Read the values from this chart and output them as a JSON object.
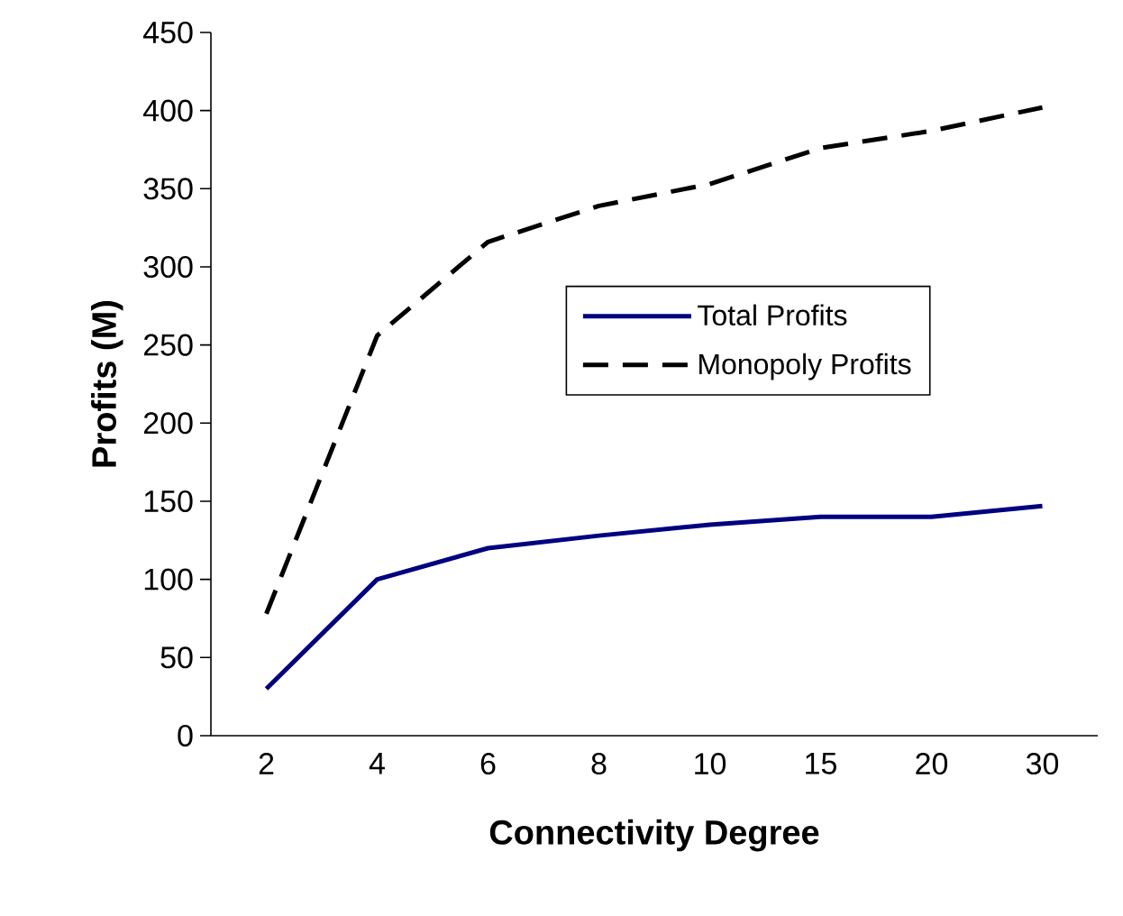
{
  "chart_data": {
    "type": "line",
    "xlabel": "Connectivity Degree",
    "ylabel": "Profits (M)",
    "categories": [
      "2",
      "4",
      "6",
      "8",
      "10",
      "15",
      "20",
      "30"
    ],
    "series": [
      {
        "name": "Total Profits",
        "color": "#000080",
        "line_style": "solid",
        "values": [
          30,
          100,
          120,
          128,
          135,
          140,
          140,
          147
        ]
      },
      {
        "name": "Monopoly Profits",
        "color": "#000000",
        "line_style": "dashed",
        "values": [
          78,
          256,
          316,
          339,
          353,
          376,
          387,
          402
        ]
      }
    ],
    "ylim": [
      0,
      450
    ],
    "yticks": [
      0,
      50,
      100,
      150,
      200,
      250,
      300,
      350,
      400,
      450
    ],
    "legend": "right",
    "grid": false,
    "marker": "none"
  }
}
